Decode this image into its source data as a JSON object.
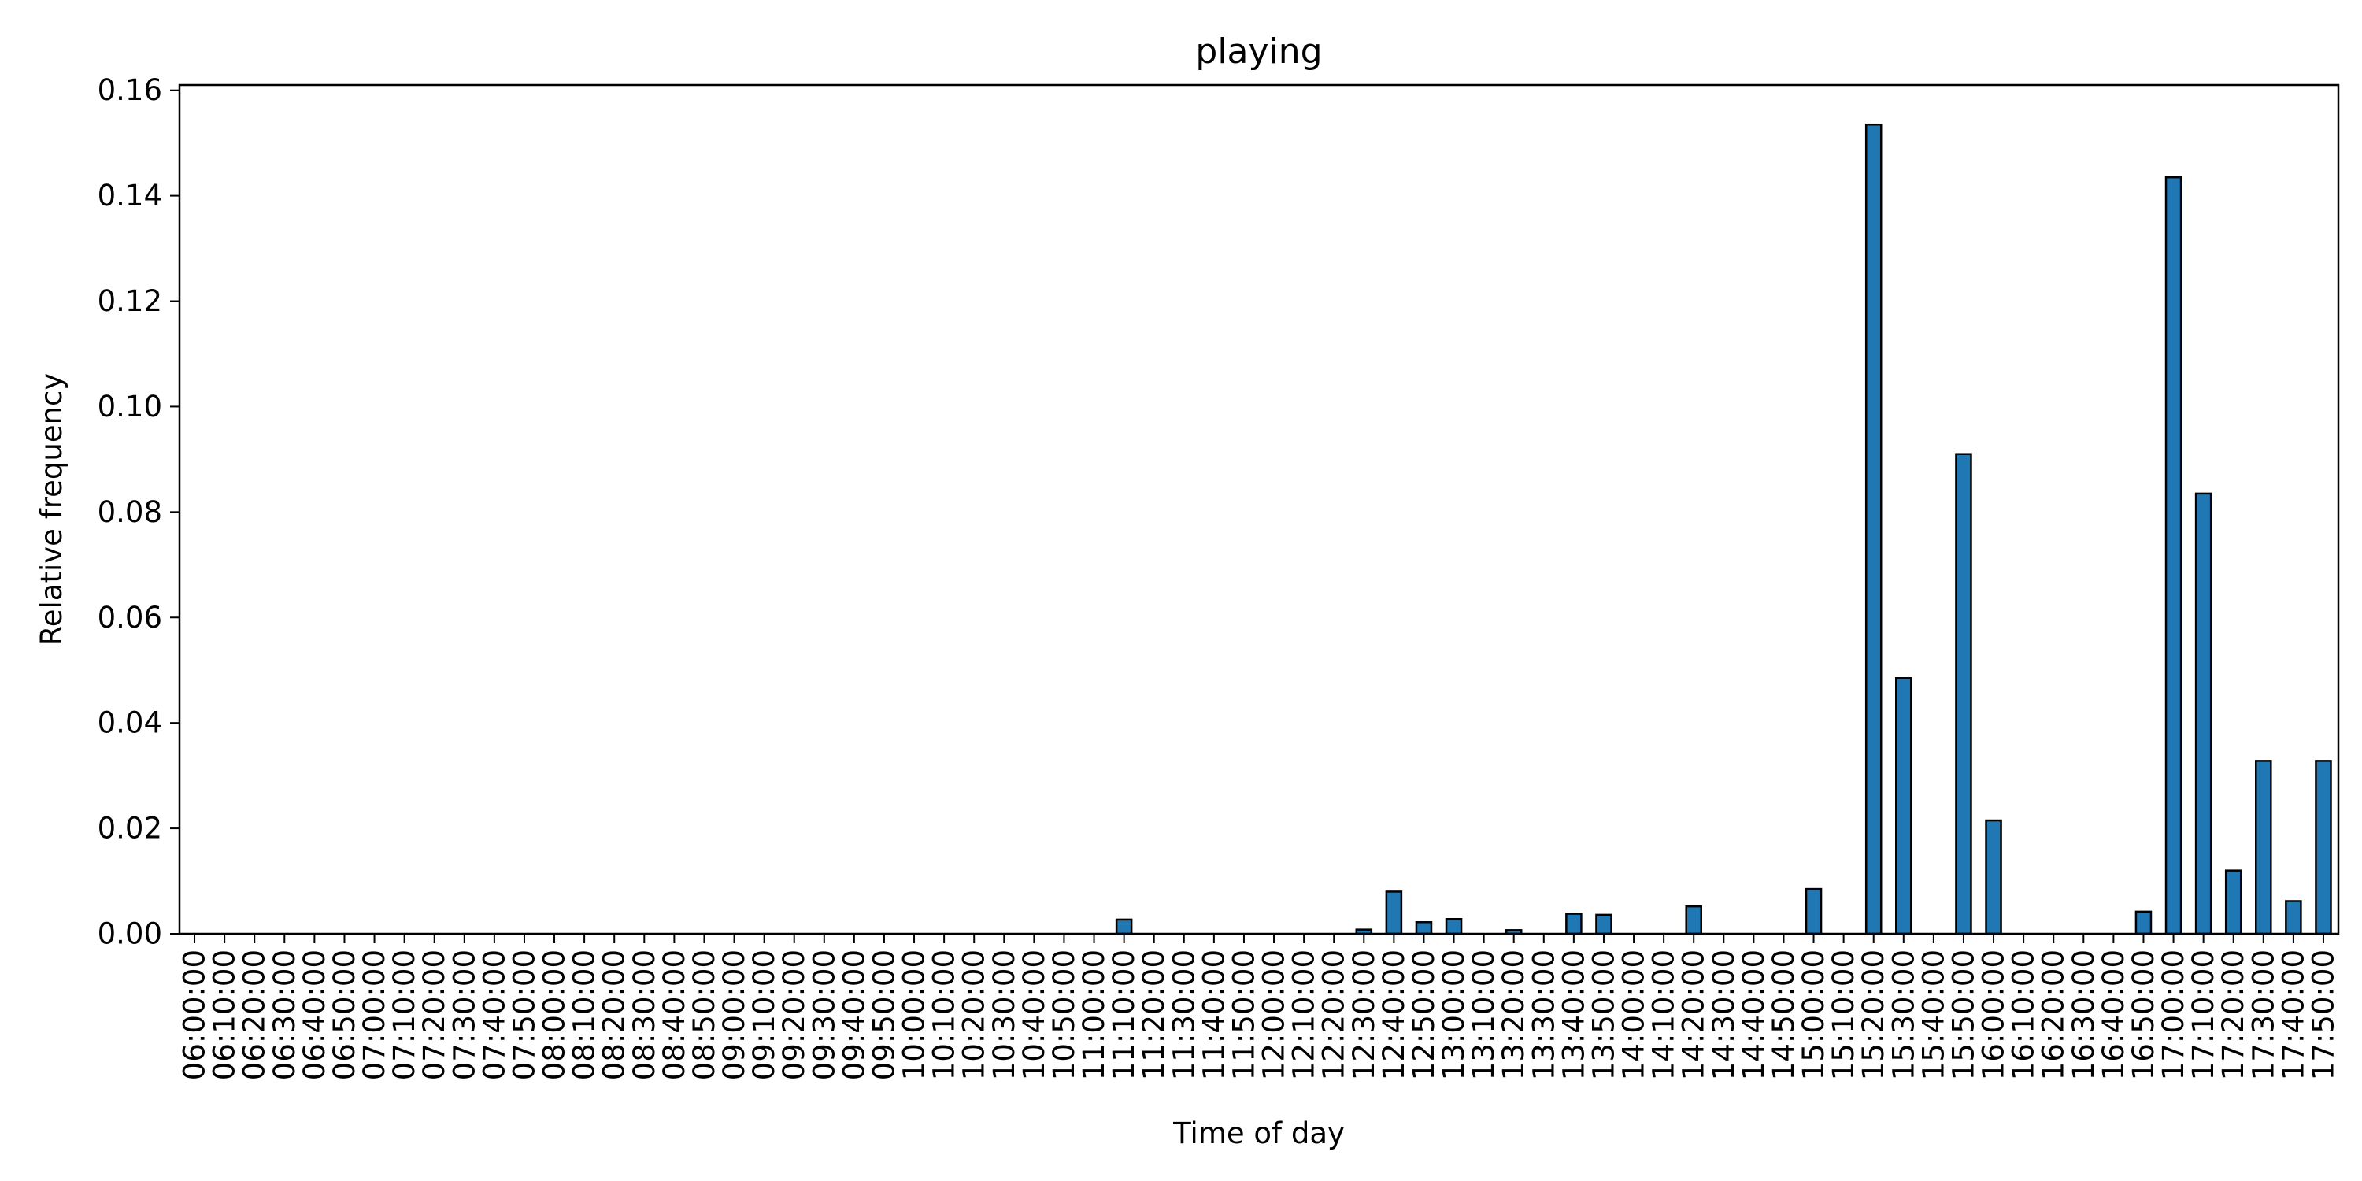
{
  "chart_data": {
    "type": "bar",
    "title": "playing",
    "xlabel": "Time of day",
    "ylabel": "Relative frequency",
    "ylim": [
      0,
      0.161
    ],
    "yticks": [
      0.0,
      0.02,
      0.04,
      0.06,
      0.08,
      0.1,
      0.12,
      0.14,
      0.16
    ],
    "ytick_labels": [
      "0.00",
      "0.02",
      "0.04",
      "0.06",
      "0.08",
      "0.10",
      "0.12",
      "0.14",
      "0.16"
    ],
    "grid": false,
    "legend": "none",
    "bar_color": "#1f77b4",
    "edge_color": "#000000",
    "categories": [
      "06:00:00",
      "06:10:00",
      "06:20:00",
      "06:30:00",
      "06:40:00",
      "06:50:00",
      "07:00:00",
      "07:10:00",
      "07:20:00",
      "07:30:00",
      "07:40:00",
      "07:50:00",
      "08:00:00",
      "08:10:00",
      "08:20:00",
      "08:30:00",
      "08:40:00",
      "08:50:00",
      "09:00:00",
      "09:10:00",
      "09:20:00",
      "09:30:00",
      "09:40:00",
      "09:50:00",
      "10:00:00",
      "10:10:00",
      "10:20:00",
      "10:30:00",
      "10:40:00",
      "10:50:00",
      "11:00:00",
      "11:10:00",
      "11:20:00",
      "11:30:00",
      "11:40:00",
      "11:50:00",
      "12:00:00",
      "12:10:00",
      "12:20:00",
      "12:30:00",
      "12:40:00",
      "12:50:00",
      "13:00:00",
      "13:10:00",
      "13:20:00",
      "13:30:00",
      "13:40:00",
      "13:50:00",
      "14:00:00",
      "14:10:00",
      "14:20:00",
      "14:30:00",
      "14:40:00",
      "14:50:00",
      "15:00:00",
      "15:10:00",
      "15:20:00",
      "15:30:00",
      "15:40:00",
      "15:50:00",
      "16:00:00",
      "16:10:00",
      "16:20:00",
      "16:30:00",
      "16:40:00",
      "16:50:00",
      "17:00:00",
      "17:10:00",
      "17:20:00",
      "17:30:00",
      "17:40:00",
      "17:50:00"
    ],
    "values": [
      0,
      0,
      0,
      0,
      0,
      0,
      0,
      0,
      0,
      0,
      0,
      0,
      0,
      0,
      0,
      0,
      0,
      0,
      0,
      0,
      0,
      0,
      0,
      0,
      0,
      0,
      0,
      0,
      0,
      0,
      0,
      0.0027,
      0,
      0,
      0,
      0,
      0,
      0,
      0,
      0.0008,
      0.008,
      0.0022,
      0.0028,
      0,
      0.0007,
      0,
      0.0038,
      0.0036,
      0,
      0,
      0.0052,
      0,
      0,
      0,
      0.0085,
      0,
      0.1535,
      0.0485,
      0,
      0.091,
      0.0215,
      0,
      0,
      0,
      0,
      0.0042,
      0.1435,
      0.0835,
      0.012,
      0.0328,
      0.0062,
      0.0328
    ]
  }
}
